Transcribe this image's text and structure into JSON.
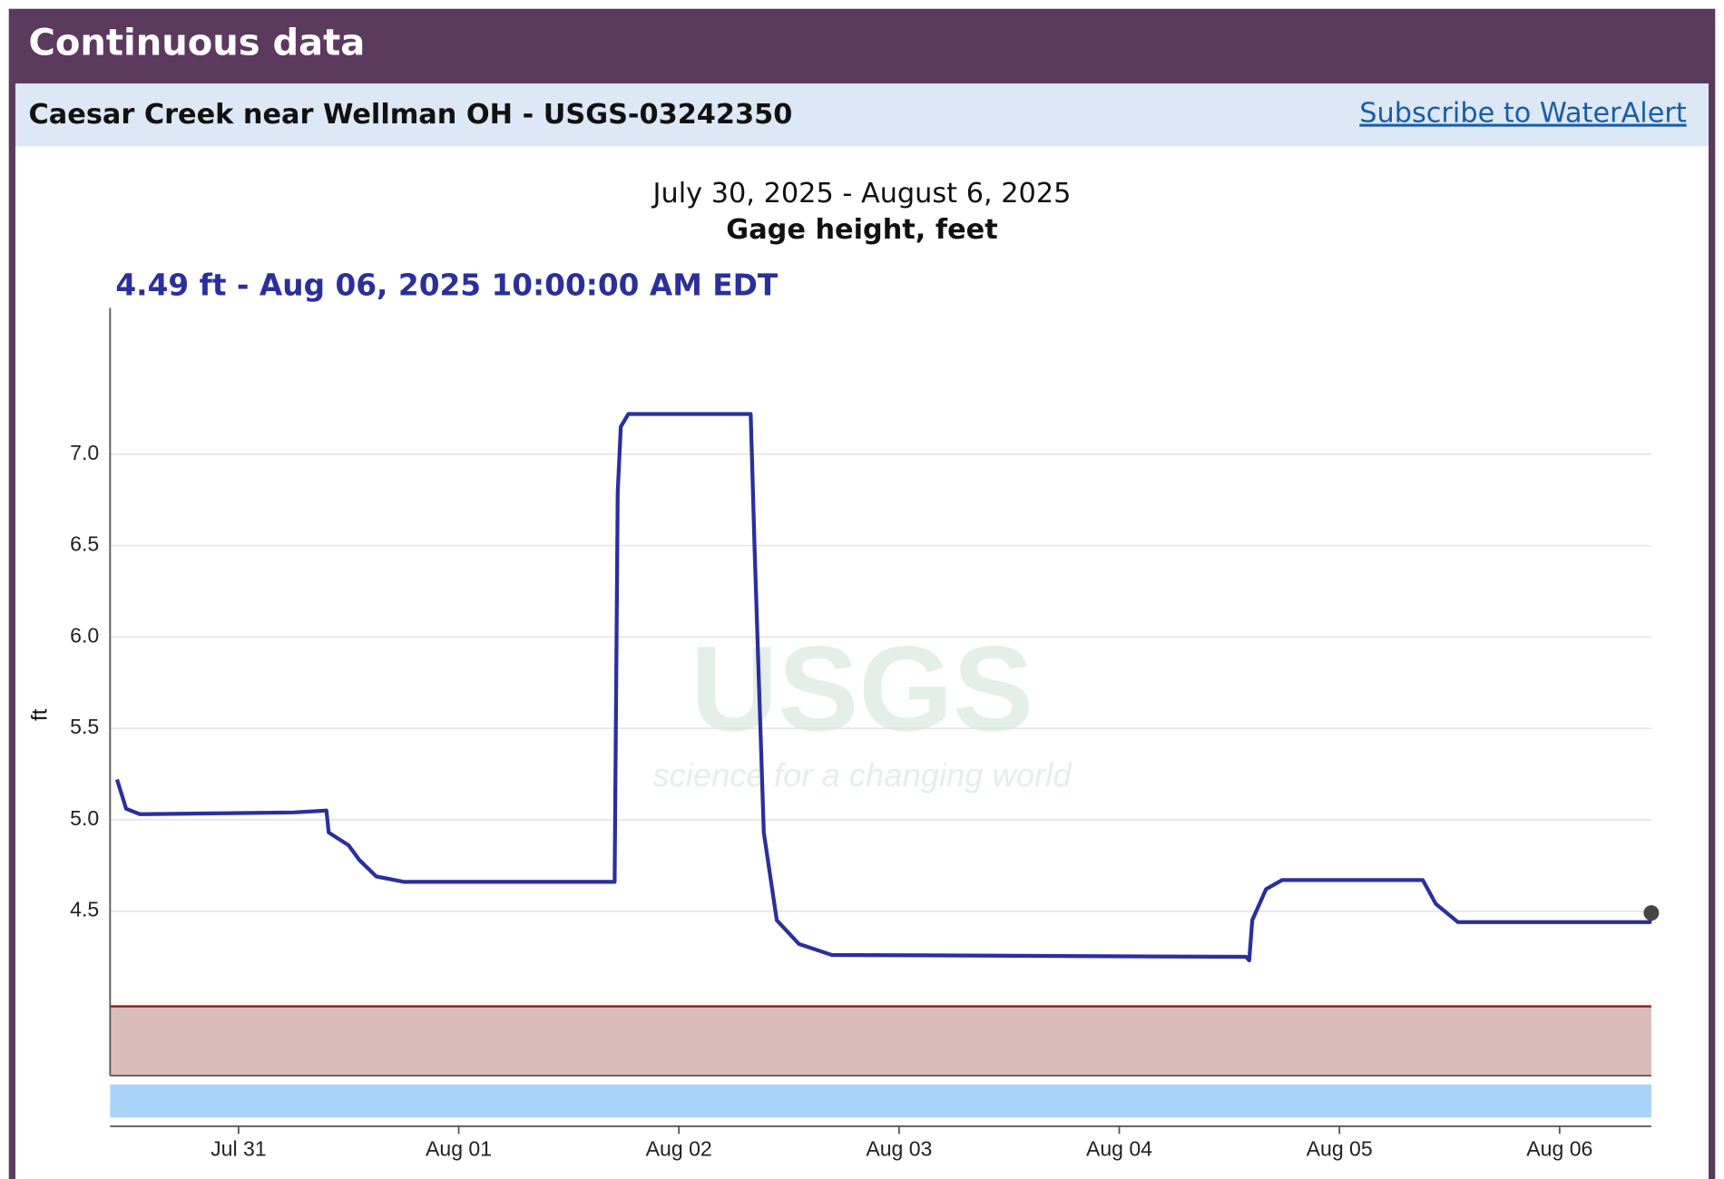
{
  "header": {
    "title": "Continuous data"
  },
  "site": {
    "name": "Caesar Creek near Wellman OH - USGS-03242350",
    "link": "Subscribe to WaterAlert"
  },
  "watermark": {
    "logo": "USGS",
    "tagline": "science for a changing world"
  },
  "chart_data": {
    "type": "line",
    "title": "July 30, 2025 - August 6, 2025",
    "subtitle": "Gage height, feet",
    "annotation": "4.49 ft - Aug 06, 2025 10:00:00 AM EDT",
    "y_label": "ft",
    "xlim": [
      "2025-07-30T10:00",
      "2025-08-06T10:00"
    ],
    "xticks": [
      {
        "value": "2025-07-31T00:00",
        "label": "Jul 31"
      },
      {
        "value": "2025-08-01T00:00",
        "label": "Aug 01"
      },
      {
        "value": "2025-08-02T00:00",
        "label": "Aug 02"
      },
      {
        "value": "2025-08-03T00:00",
        "label": "Aug 03"
      },
      {
        "value": "2025-08-04T00:00",
        "label": "Aug 04"
      },
      {
        "value": "2025-08-05T00:00",
        "label": "Aug 05"
      },
      {
        "value": "2025-08-06T00:00",
        "label": "Aug 06"
      }
    ],
    "ylim": [
      3.6,
      7.8
    ],
    "yticks": [
      {
        "value": 4.5,
        "label": "4.5"
      },
      {
        "value": 5,
        "label": "5.0"
      },
      {
        "value": 5.5,
        "label": "5.5"
      },
      {
        "value": 6,
        "label": "6.0"
      },
      {
        "value": 6.5,
        "label": "6.5"
      },
      {
        "value": 7,
        "label": "7.0"
      }
    ],
    "grid": true,
    "x": [
      "2025-07-30T10:45",
      "2025-07-30T11:45",
      "2025-07-30T13:15",
      "2025-07-31T06:00",
      "2025-07-31T09:35",
      "2025-07-31T09:50",
      "2025-07-31T12:00",
      "2025-07-31T13:10",
      "2025-07-31T15:00",
      "2025-07-31T18:00",
      "2025-08-01T17:00",
      "2025-08-01T17:20",
      "2025-08-01T17:40",
      "2025-08-01T18:30",
      "2025-08-02T07:50",
      "2025-08-02T08:15",
      "2025-08-02T09:15",
      "2025-08-02T10:40",
      "2025-08-02T13:05",
      "2025-08-02T16:40",
      "2025-08-04T13:50",
      "2025-08-04T14:10",
      "2025-08-04T14:30",
      "2025-08-04T16:00",
      "2025-08-04T17:45",
      "2025-08-05T09:05",
      "2025-08-05T10:30",
      "2025-08-05T12:55",
      "2025-08-06T09:50",
      "2025-08-06T10:00"
    ],
    "series": [
      {
        "name": "Gage height",
        "color": "#2b2f9c",
        "values": [
          5.22,
          5.06,
          5.03,
          5.04,
          5.05,
          4.93,
          4.86,
          4.78,
          4.69,
          4.66,
          4.66,
          6.79,
          7.15,
          7.22,
          7.22,
          6.49,
          4.93,
          4.45,
          4.32,
          4.26,
          4.25,
          4.23,
          4.45,
          4.62,
          4.67,
          4.67,
          4.54,
          4.44,
          4.44,
          4.49
        ]
      }
    ]
  }
}
